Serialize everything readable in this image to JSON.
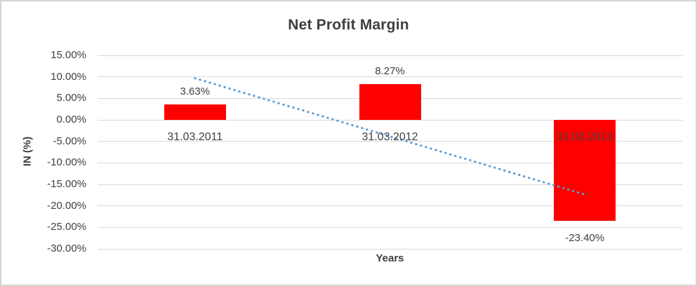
{
  "chart_data": {
    "type": "bar",
    "title": "Net Profit Margin",
    "xlabel": "Years",
    "ylabel": "IN (%)",
    "categories": [
      "31.03.2011",
      "31.03.2012",
      "31.03.2013"
    ],
    "values": [
      3.63,
      8.27,
      -23.4
    ],
    "data_labels": [
      "3.63%",
      "8.27%",
      "-23.40%"
    ],
    "ylim": [
      -30,
      15
    ],
    "ytick_step": 5,
    "ytick_labels": [
      "15.00%",
      "10.00%",
      "5.00%",
      "0.00%",
      "-5.00%",
      "-10.00%",
      "-15.00%",
      "-20.00%",
      "-25.00%",
      "-30.00%"
    ],
    "grid": true,
    "legend": false,
    "bar_color": "#ff0000",
    "gridline_color": "#d9d9d9",
    "text_color": "#404040",
    "trendline": {
      "type": "linear",
      "style": "dotted",
      "color": "#5b9bd5",
      "start_value": 9.68,
      "end_value": -17.35
    }
  }
}
